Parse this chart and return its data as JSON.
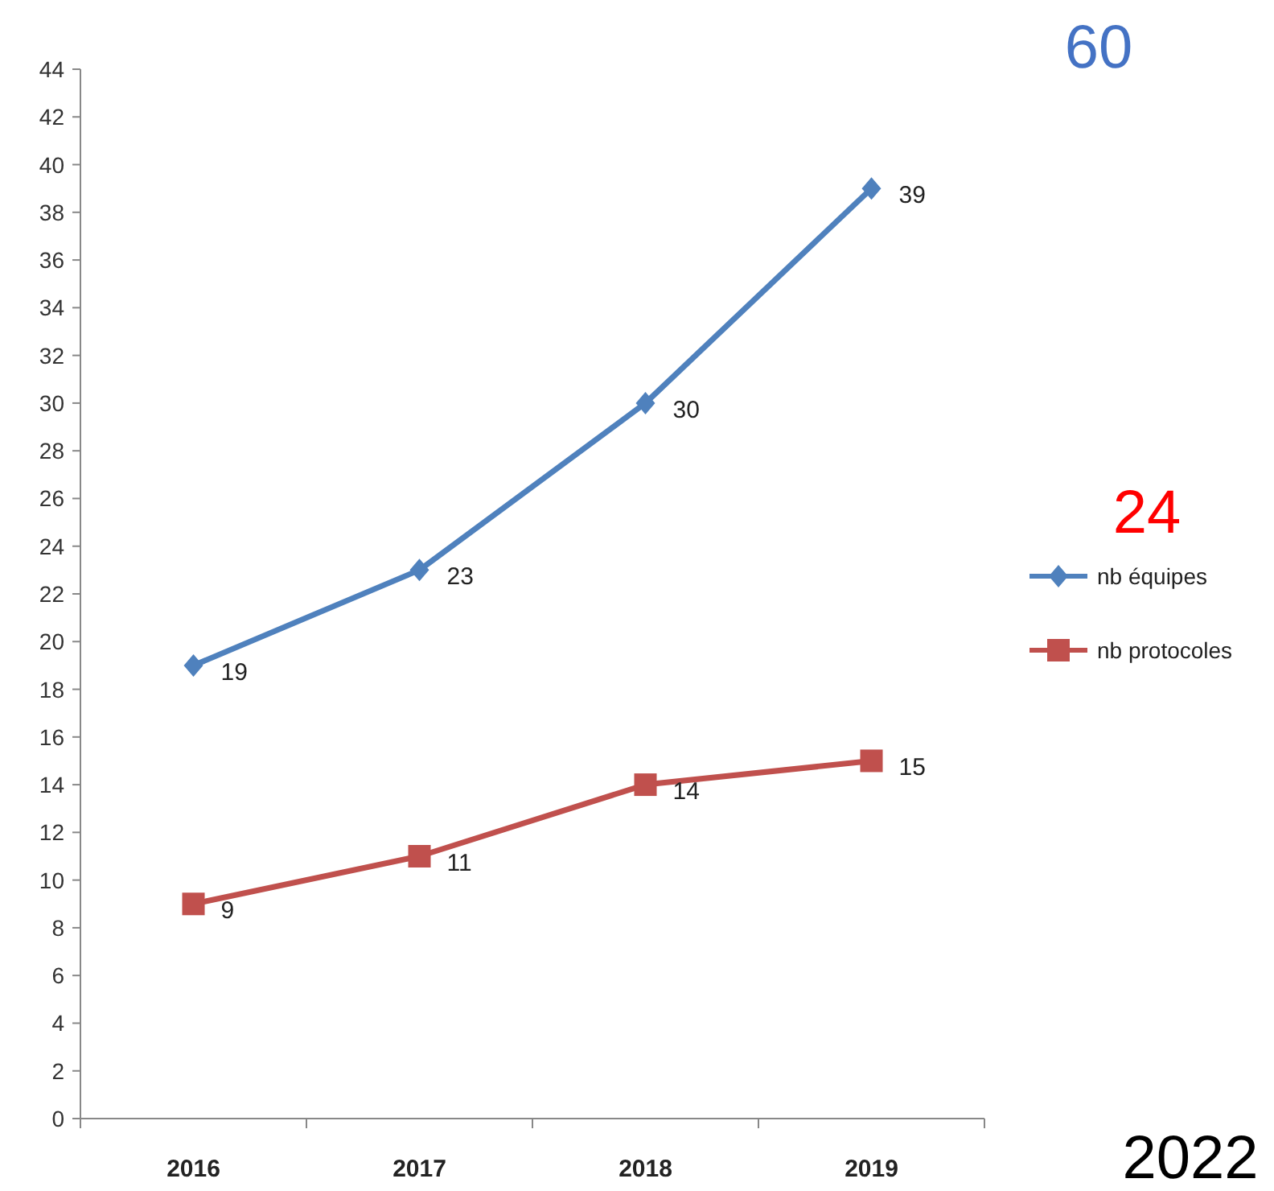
{
  "chart_data": {
    "type": "line",
    "categories": [
      "2016",
      "2017",
      "2018",
      "2019"
    ],
    "series": [
      {
        "name": "nb équipes",
        "color": "#4f81bd",
        "values": [
          19,
          23,
          30,
          39
        ],
        "marker": "diamond"
      },
      {
        "name": "nb protocoles",
        "color": "#c0504d",
        "values": [
          9,
          11,
          14,
          15
        ],
        "marker": "square"
      }
    ],
    "ylim": [
      0,
      44
    ],
    "yticks": [
      0,
      2,
      4,
      6,
      8,
      10,
      12,
      14,
      16,
      18,
      20,
      22,
      24,
      26,
      28,
      30,
      32,
      34,
      36,
      38,
      40,
      42,
      44
    ],
    "data_labels": true,
    "legend": "right",
    "grid": false,
    "annotations": [
      "60",
      "24",
      "2022"
    ]
  }
}
